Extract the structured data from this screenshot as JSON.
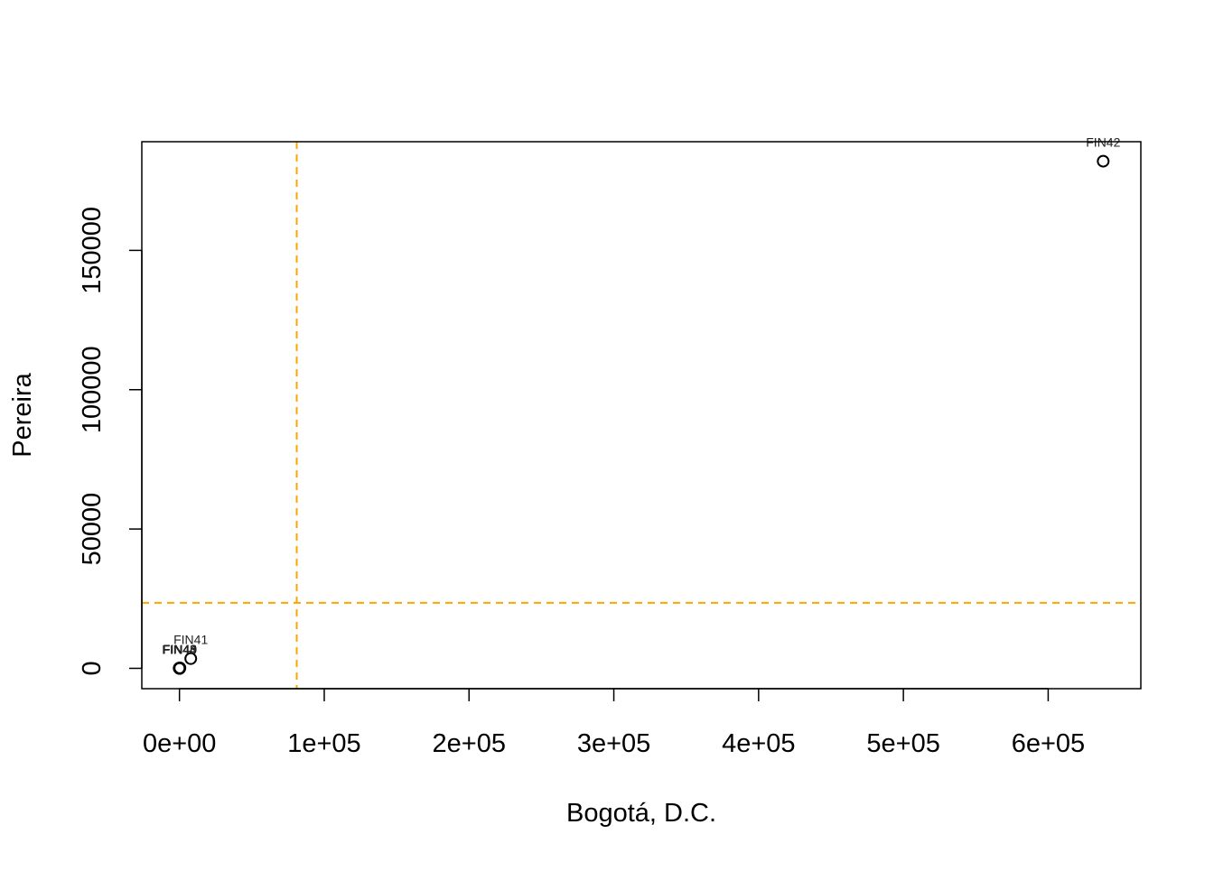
{
  "chart_data": {
    "type": "scatter",
    "title": "",
    "xlabel": "Bogotá, D.C.",
    "ylabel": "Pereira",
    "xlim": [
      -26000,
      664000
    ],
    "ylim": [
      -7300,
      189000
    ],
    "x_ticks": [
      0,
      100000,
      200000,
      300000,
      400000,
      500000,
      600000
    ],
    "x_tick_labels": [
      "0e+00",
      "1e+05",
      "2e+05",
      "3e+05",
      "4e+05",
      "5e+05",
      "6e+05"
    ],
    "y_ticks": [
      0,
      50000,
      100000,
      150000
    ],
    "y_tick_labels": [
      "0",
      "50000",
      "100000",
      "150000"
    ],
    "points": [
      {
        "label": "FIN42",
        "x": 638000,
        "y": 182000
      },
      {
        "label": "FIN41",
        "x": 7800,
        "y": 3500
      },
      {
        "label": "FIN40",
        "x": 300,
        "y": 150
      },
      {
        "label": "FIN43",
        "x": 0,
        "y": 0
      },
      {
        "label": "FIN44",
        "x": -200,
        "y": 50
      },
      {
        "label": "FIN45",
        "x": 100,
        "y": -50
      }
    ],
    "reference_lines": {
      "vertical_x": 81000,
      "horizontal_y": 23500,
      "color": "#FFA500",
      "style": "dashed"
    },
    "grid": false,
    "legend": "none",
    "point_color": "#000000"
  }
}
